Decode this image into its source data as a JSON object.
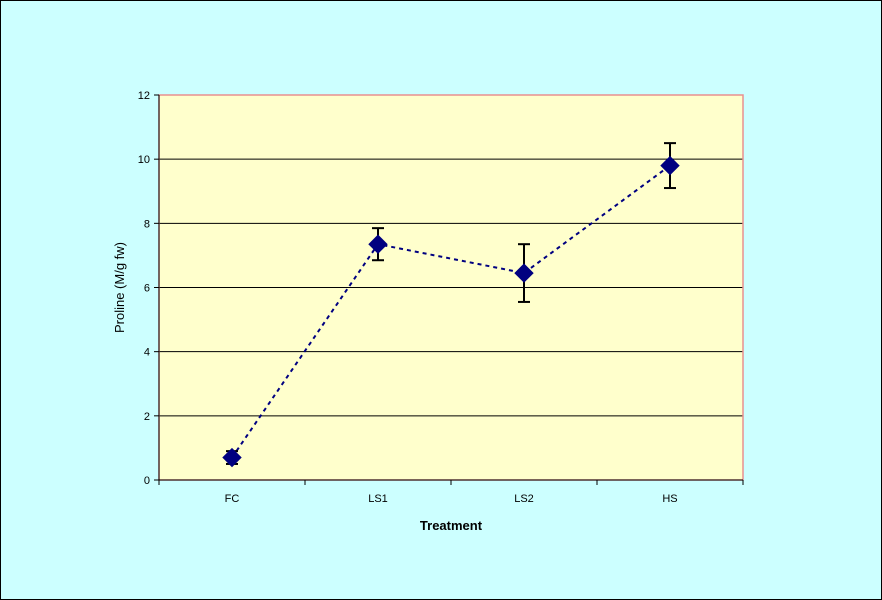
{
  "chart_data": {
    "type": "line",
    "categories": [
      "FC",
      "LS1",
      "LS2",
      "HS"
    ],
    "series": [
      {
        "values": [
          0.7,
          7.35,
          6.45,
          9.8
        ],
        "error": [
          0.2,
          0.5,
          0.9,
          0.7
        ],
        "color": "#000080",
        "marker": "diamond",
        "line_style": "dotted"
      }
    ],
    "xlabel": "Treatment",
    "ylabel": "Proline (M/g fw)",
    "ylim": [
      0,
      12
    ],
    "yticks": [
      0,
      2,
      4,
      6,
      8,
      10,
      12
    ],
    "ytick_labels": [
      "0",
      "2",
      "4",
      "6",
      "8",
      "10",
      "12"
    ],
    "grid": "horizontal",
    "legend": "none",
    "colors": {
      "chart_background": "#ccffff",
      "plot_background": "#ffffcc",
      "plot_border": "#e89090",
      "gridline": "#000000",
      "series": "#000080"
    }
  }
}
